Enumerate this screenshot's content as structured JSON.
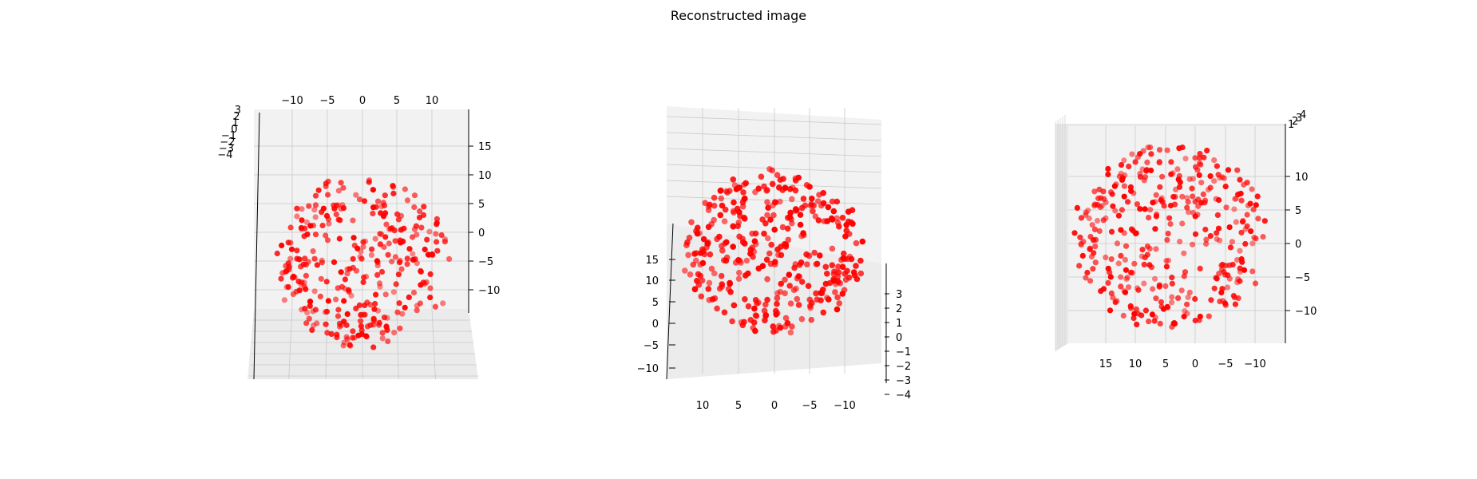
{
  "figure": {
    "title": "Reconstructed image"
  },
  "colors": {
    "points": "#ff0000",
    "pane": "#f2f2f2",
    "grid": "#c8c8c8"
  },
  "chart_data": [
    {
      "type": "scatter",
      "view": "left panel",
      "title": "",
      "x_ticks": [
        -10,
        -5,
        0,
        5,
        10
      ],
      "y_ticks": [
        15,
        10,
        5,
        0,
        -5,
        -10
      ],
      "z_ticks": [
        3,
        2,
        1,
        0,
        -1,
        -2,
        -3,
        -4
      ],
      "xlim": [
        -15,
        16
      ],
      "ylim": [
        -14,
        19
      ],
      "zlim": [
        -4,
        3
      ],
      "grid": true,
      "point_count": 320
    },
    {
      "type": "scatter",
      "view": "middle panel",
      "title": "",
      "x_ticks": [
        10,
        5,
        0,
        -5,
        -10
      ],
      "y_ticks": [
        15,
        10,
        5,
        0,
        -5,
        -10
      ],
      "z_ticks": [
        3,
        2,
        1,
        0,
        -1,
        -2,
        -3,
        -4
      ],
      "xlim": [
        -15,
        16
      ],
      "ylim": [
        -14,
        19
      ],
      "zlim": [
        -4,
        3
      ],
      "grid": true,
      "point_count": 360
    },
    {
      "type": "scatter",
      "view": "right panel",
      "title": "",
      "x_ticks": [
        15,
        10,
        5,
        0,
        -5,
        -10
      ],
      "y_ticks": [
        10,
        5,
        0,
        -5,
        -10
      ],
      "z_ticks": [
        4,
        3,
        2,
        1
      ],
      "xlim": [
        -15,
        20
      ],
      "ylim": [
        -15,
        15
      ],
      "zlim": [
        -4,
        4
      ],
      "grid": true,
      "point_count": 360
    }
  ]
}
